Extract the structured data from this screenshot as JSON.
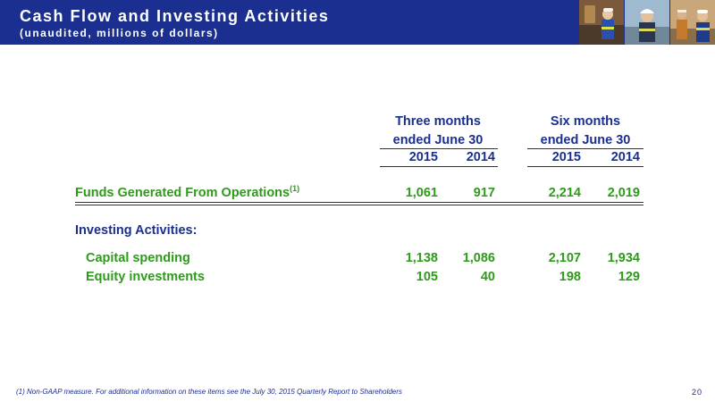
{
  "header": {
    "title": "Cash Flow and Investing Activities",
    "subtitle": "(unaudited, millions of dollars)"
  },
  "table": {
    "groups": [
      {
        "line1": "Three months",
        "line2": "ended June 30"
      },
      {
        "line1": "Six months",
        "line2": "ended June 30"
      }
    ],
    "years": [
      "2015",
      "2014",
      "2015",
      "2014"
    ],
    "funds_row": {
      "label": "Funds Generated From Operations",
      "note": "(1)",
      "values": [
        "1,061",
        "917",
        "2,214",
        "2,019"
      ]
    },
    "investing_heading": "Investing Activities:",
    "rows": [
      {
        "label": "Capital spending",
        "values": [
          "1,138",
          "1,086",
          "2,107",
          "1,934"
        ]
      },
      {
        "label": "Equity investments",
        "values": [
          "105",
          "40",
          "198",
          "129"
        ]
      }
    ]
  },
  "footnote": "(1) Non-GAAP measure.  For additional information on these items see the July 30, 2015 Quarterly Report to Shareholders",
  "page_number": "20",
  "colors": {
    "header_bg": "#1a2f8f",
    "navy_text": "#1a2f8f",
    "green_text": "#2e9a1a"
  }
}
